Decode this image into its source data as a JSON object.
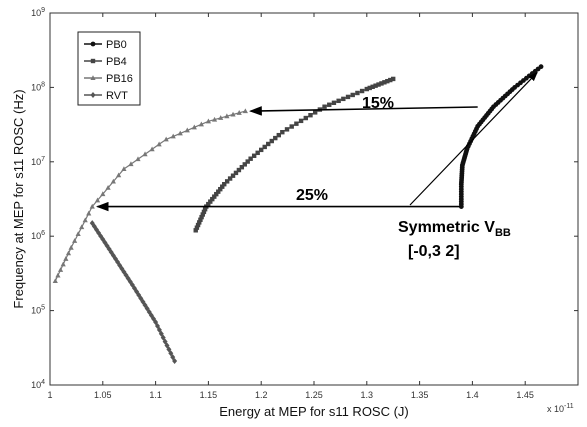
{
  "chart_data": {
    "type": "line",
    "xlabel": "Energy at MEP for s11 ROSC (J)",
    "ylabel": "Frequency at MEP for s11 ROSC (Hz)",
    "x_multiplier_label": "x 10",
    "x_multiplier_exp": "-11",
    "xlim": [
      1.0,
      1.5
    ],
    "ylim": [
      10000,
      1000000000
    ],
    "y_scale": "log",
    "x_ticks": [
      "1",
      "1.05",
      "1.1",
      "1.15",
      "1.2",
      "1.25",
      "1.3",
      "1.35",
      "1.4",
      "1.45"
    ],
    "y_ticks": [
      {
        "base": "10",
        "exp": "4"
      },
      {
        "base": "10",
        "exp": "5"
      },
      {
        "base": "10",
        "exp": "6"
      },
      {
        "base": "10",
        "exp": "7"
      },
      {
        "base": "10",
        "exp": "8"
      },
      {
        "base": "10",
        "exp": "9"
      }
    ],
    "legend_position": "top-left",
    "series": [
      {
        "name": "PB0",
        "marker": "circle",
        "color": "#111111",
        "points": [
          [
            1.3895,
            2500000
          ],
          [
            1.3895,
            5000000
          ],
          [
            1.3905,
            9000000
          ],
          [
            1.395,
            15000000
          ],
          [
            1.405,
            30000000
          ],
          [
            1.42,
            55000000
          ],
          [
            1.44,
            100000000
          ],
          [
            1.465,
            190000000
          ]
        ]
      },
      {
        "name": "PB4",
        "marker": "square",
        "color": "#444444",
        "points": [
          [
            1.138,
            1200000
          ],
          [
            1.148,
            2500000
          ],
          [
            1.165,
            5000000
          ],
          [
            1.19,
            11000000
          ],
          [
            1.22,
            25000000
          ],
          [
            1.26,
            55000000
          ],
          [
            1.3,
            95000000
          ],
          [
            1.325,
            130000000
          ]
        ]
      },
      {
        "name": "PB16",
        "marker": "triangle",
        "color": "#777777",
        "points": [
          [
            1.005,
            250000
          ],
          [
            1.02,
            700000
          ],
          [
            1.04,
            2500000
          ],
          [
            1.07,
            8000000
          ],
          [
            1.11,
            20000000
          ],
          [
            1.15,
            35000000
          ],
          [
            1.185,
            48000000
          ]
        ]
      },
      {
        "name": "RVT",
        "marker": "diamond",
        "color": "#555555",
        "points": [
          [
            1.04,
            1500000
          ],
          [
            1.06,
            550000
          ],
          [
            1.08,
            200000
          ],
          [
            1.1,
            70000
          ],
          [
            1.118,
            21000
          ]
        ]
      }
    ],
    "annotations": {
      "label_15": "15%",
      "label_25": "25%",
      "sym_main": "Symmetric V",
      "sym_sub": "BB",
      "sym_range": "[-0,3  2]"
    }
  }
}
